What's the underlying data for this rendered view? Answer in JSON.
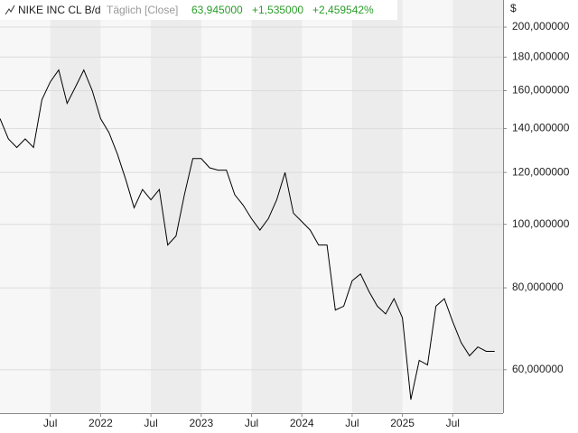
{
  "header": {
    "instrument": "NIKE INC CL B/d",
    "period": "Täglich [Close]",
    "last": "63,945000",
    "change": "+1,535000",
    "change_pct": "+2,459542%"
  },
  "chart_data": {
    "type": "line",
    "log_scale": true,
    "grid": true,
    "y_unit": "$",
    "color": "#000000",
    "x": [
      "2021-01",
      "2021-02",
      "2021-03",
      "2021-04",
      "2021-05",
      "2021-06",
      "2021-07",
      "2021-08",
      "2021-09",
      "2021-10",
      "2021-11",
      "2021-12",
      "2022-01",
      "2022-02",
      "2022-03",
      "2022-04",
      "2022-05",
      "2022-06",
      "2022-07",
      "2022-08",
      "2022-09",
      "2022-10",
      "2022-11",
      "2022-12",
      "2023-01",
      "2023-02",
      "2023-03",
      "2023-04",
      "2023-05",
      "2023-06",
      "2023-07",
      "2023-08",
      "2023-09",
      "2023-10",
      "2023-11",
      "2023-12",
      "2024-01",
      "2024-02",
      "2024-03",
      "2024-04",
      "2024-05",
      "2024-06",
      "2024-07",
      "2024-08",
      "2024-09",
      "2024-10",
      "2024-11",
      "2024-12",
      "2025-01",
      "2025-02",
      "2025-03",
      "2025-04",
      "2025-05",
      "2025-06",
      "2025-07",
      "2025-08",
      "2025-09",
      "2025-10",
      "2025-11",
      "2025-12"
    ],
    "series": [
      {
        "name": "NIKE INC CL B",
        "color": "#000000",
        "values": [
          145,
          135,
          131,
          135,
          131,
          155,
          165,
          172,
          153,
          162,
          172,
          160,
          145,
          138,
          128,
          117,
          106,
          113,
          109,
          113,
          93,
          96,
          111,
          126,
          126,
          122,
          121,
          121,
          111,
          107,
          102,
          98,
          102,
          109,
          120,
          104,
          101,
          98,
          93,
          93,
          74,
          75,
          82,
          84,
          79,
          75,
          73,
          77,
          72,
          54,
          62,
          61,
          75,
          77,
          71,
          66,
          63,
          65,
          64,
          64
        ]
      }
    ],
    "xlim": [
      "2021-01",
      "2026-01"
    ],
    "xticks": [
      {
        "value": "2021-07",
        "label": "Jul"
      },
      {
        "value": "2022-01",
        "label": "2022"
      },
      {
        "value": "2022-07",
        "label": "Jul"
      },
      {
        "value": "2023-01",
        "label": "2023"
      },
      {
        "value": "2023-07",
        "label": "Jul"
      },
      {
        "value": "2024-01",
        "label": "2024"
      },
      {
        "value": "2024-07",
        "label": "Jul"
      },
      {
        "value": "2025-01",
        "label": "2025"
      },
      {
        "value": "2025-07",
        "label": "Jul"
      }
    ],
    "ylim": [
      51.5,
      220
    ],
    "yticks": [
      {
        "value": 60,
        "label": "60,000000"
      },
      {
        "value": 80,
        "label": "80,000000"
      },
      {
        "value": 100,
        "label": "100,000000"
      },
      {
        "value": 120,
        "label": "120,000000"
      },
      {
        "value": 140,
        "label": "140,000000"
      },
      {
        "value": 160,
        "label": "160,000000"
      },
      {
        "value": 180,
        "label": "180,000000"
      },
      {
        "value": 200,
        "label": "200,000000"
      }
    ]
  }
}
